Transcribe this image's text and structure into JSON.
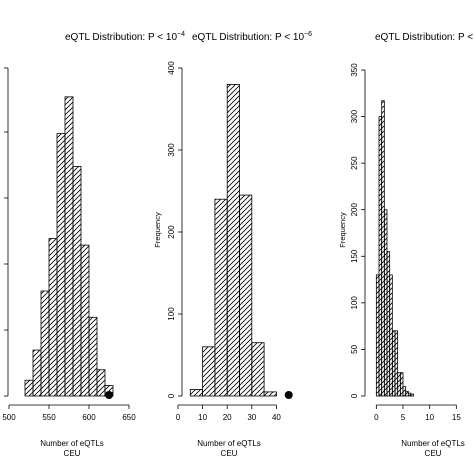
{
  "chart_data": [
    {
      "type": "bar",
      "title": "eQTL Distribution: P <  10",
      "title_exp": "−4",
      "xlabel": "Number of eQTLs",
      "xsublabel": "CEU",
      "ylabel": "",
      "xlim": [
        500,
        650
      ],
      "ylim": [
        0,
        250
      ],
      "x_ticks": [
        "500",
        "550",
        "600",
        "650"
      ],
      "y_ticks": [],
      "bins": [
        {
          "x0": 520,
          "x1": 530,
          "count": 12
        },
        {
          "x0": 530,
          "x1": 540,
          "count": 35
        },
        {
          "x0": 540,
          "x1": 550,
          "count": 80
        },
        {
          "x0": 550,
          "x1": 560,
          "count": 120
        },
        {
          "x0": 560,
          "x1": 570,
          "count": 200
        },
        {
          "x0": 570,
          "x1": 580,
          "count": 228
        },
        {
          "x0": 580,
          "x1": 590,
          "count": 175
        },
        {
          "x0": 590,
          "x1": 600,
          "count": 115
        },
        {
          "x0": 600,
          "x1": 610,
          "count": 60
        },
        {
          "x0": 610,
          "x1": 620,
          "count": 20
        },
        {
          "x0": 620,
          "x1": 630,
          "count": 8
        }
      ],
      "observed": 625
    },
    {
      "type": "bar",
      "title": "eQTL Distribution: P <  10",
      "title_exp": "−6",
      "xlabel": "Number of eQTLs",
      "xsublabel": "CEU",
      "ylabel": "Frequency",
      "xlim": [
        0,
        50
      ],
      "ylim": [
        0,
        400
      ],
      "x_ticks": [
        "0",
        "10",
        "20",
        "30",
        "40"
      ],
      "y_ticks": [
        "0",
        "100",
        "200",
        "300",
        "400"
      ],
      "bins": [
        {
          "x0": 5,
          "x1": 10,
          "count": 8
        },
        {
          "x0": 10,
          "x1": 15,
          "count": 60
        },
        {
          "x0": 15,
          "x1": 20,
          "count": 240
        },
        {
          "x0": 20,
          "x1": 25,
          "count": 380
        },
        {
          "x0": 25,
          "x1": 30,
          "count": 245
        },
        {
          "x0": 30,
          "x1": 35,
          "count": 65
        },
        {
          "x0": 35,
          "x1": 40,
          "count": 5
        }
      ],
      "observed": 45
    },
    {
      "type": "bar",
      "title": "eQTL Distribution: P <",
      "title_exp": "",
      "xlabel": "Number of eQTLs",
      "xsublabel": "CEU",
      "ylabel": "Frequency",
      "xlim": [
        -1,
        17
      ],
      "ylim": [
        0,
        350
      ],
      "x_ticks": [
        "0",
        "5",
        "10",
        "15"
      ],
      "y_ticks": [
        "0",
        "50",
        "100",
        "150",
        "200",
        "250",
        "300",
        "350"
      ],
      "bins": [
        {
          "x0": 0,
          "x1": 0.5,
          "count": 130
        },
        {
          "x0": 0.5,
          "x1": 1,
          "count": 300
        },
        {
          "x0": 1,
          "x1": 1.5,
          "count": 317
        },
        {
          "x0": 1.5,
          "x1": 2,
          "count": 200
        },
        {
          "x0": 2,
          "x1": 2.5,
          "count": 155
        },
        {
          "x0": 2.5,
          "x1": 3,
          "count": 130
        },
        {
          "x0": 3,
          "x1": 3.5,
          "count": 70
        },
        {
          "x0": 3.5,
          "x1": 4,
          "count": 70
        },
        {
          "x0": 4,
          "x1": 4.5,
          "count": 25
        },
        {
          "x0": 4.5,
          "x1": 5,
          "count": 25
        },
        {
          "x0": 5,
          "x1": 5.5,
          "count": 10
        },
        {
          "x0": 5.5,
          "x1": 6,
          "count": 5
        },
        {
          "x0": 6,
          "x1": 6.5,
          "count": 3
        },
        {
          "x0": 6.5,
          "x1": 7,
          "count": 2
        }
      ],
      "observed": null
    }
  ]
}
